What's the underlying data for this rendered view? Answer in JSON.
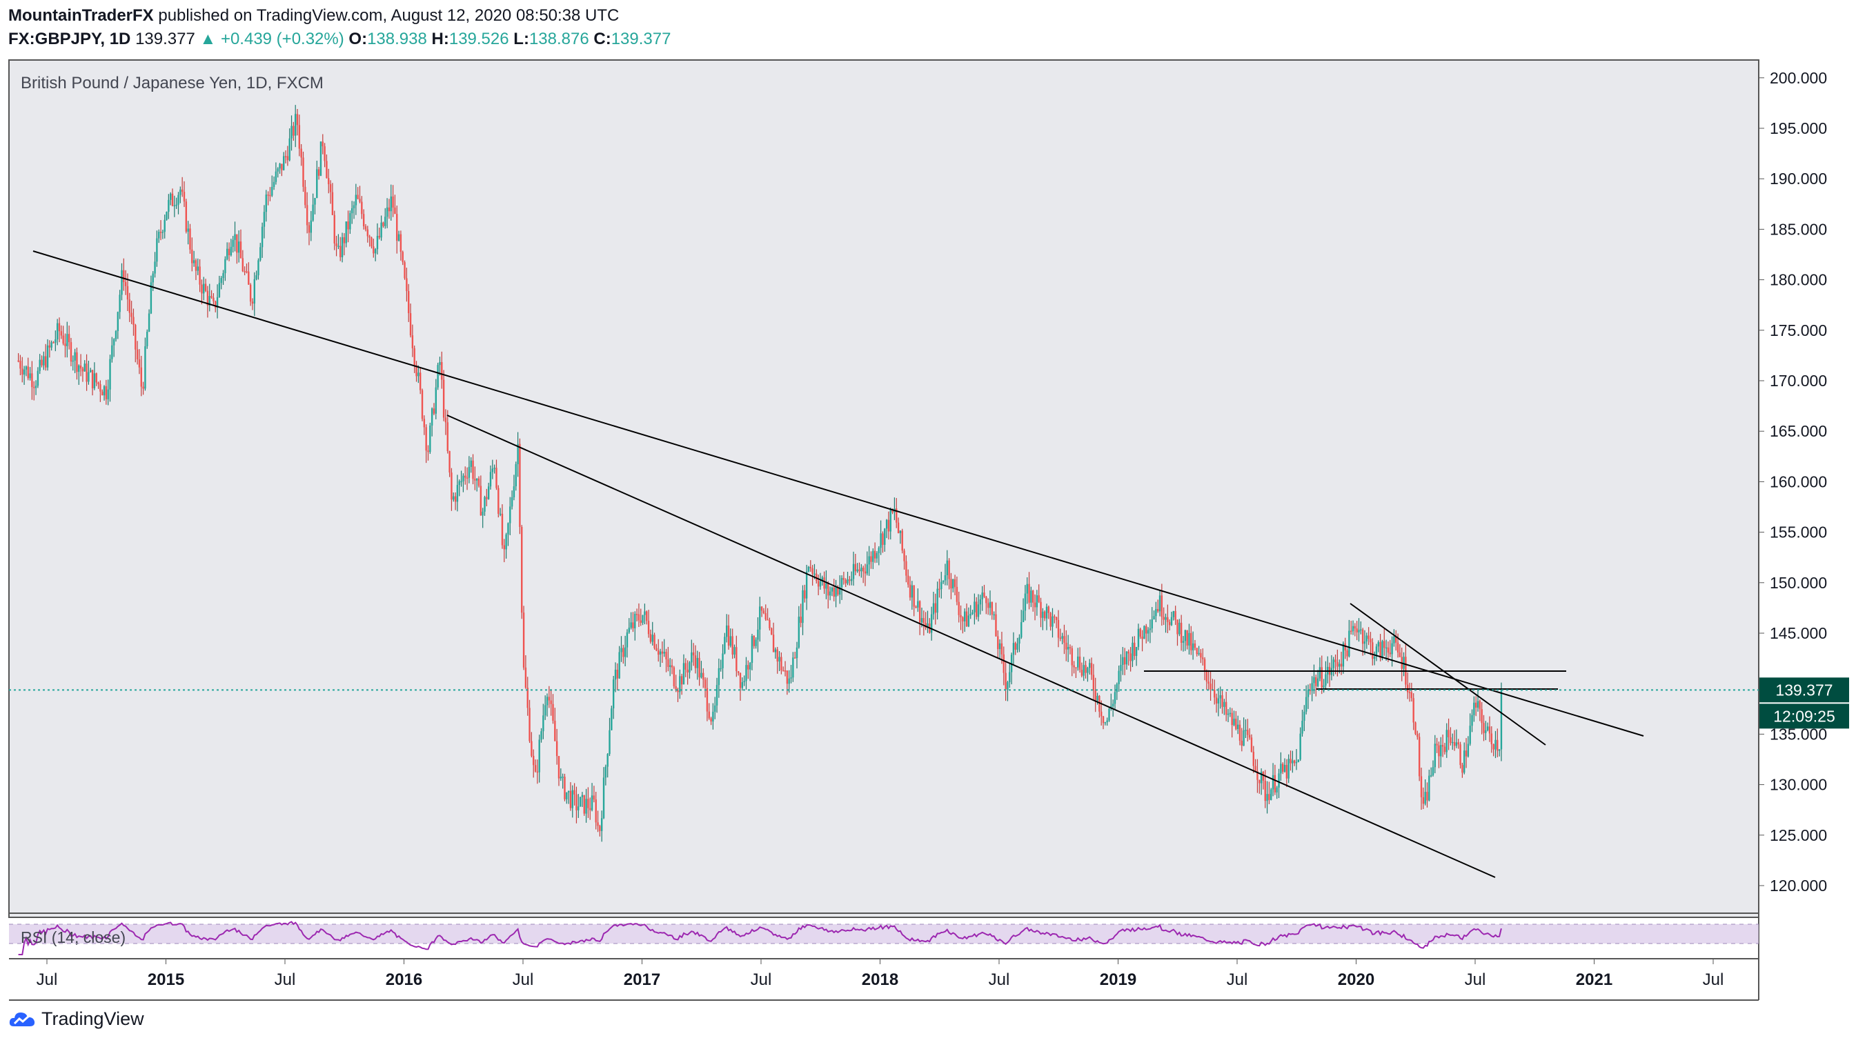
{
  "header": {
    "author": "MountainTraderFX",
    "published": "published on TradingView.com, August 12, 2020 08:50:38 UTC"
  },
  "quote": {
    "symbol": "FX:GBPJPY, 1D",
    "last": "139.377",
    "arrow": "▲",
    "change": "+0.439 (+0.32%)",
    "o_label": "O:",
    "o": "138.938",
    "h_label": "H:",
    "h": "139.526",
    "l_label": "L:",
    "l": "138.876",
    "c_label": "C:",
    "c": "139.377"
  },
  "chart_data": {
    "type": "candlestick",
    "title": "British Pound / Japanese Yen, 1D, FXCM",
    "ylim": [
      115,
      202
    ],
    "y_ticks": [
      "120.000",
      "125.000",
      "130.000",
      "135.000",
      "140.000",
      "145.000",
      "150.000",
      "155.000",
      "160.000",
      "165.000",
      "170.000",
      "175.000",
      "180.000",
      "185.000",
      "190.000",
      "195.000",
      "200.000"
    ],
    "x_range": [
      2014.38,
      2021.78
    ],
    "x_ticks": [
      {
        "label": "Jul",
        "t": 2014.5
      },
      {
        "label": "2015",
        "t": 2015.0
      },
      {
        "label": "Jul",
        "t": 2015.5
      },
      {
        "label": "2016",
        "t": 2016.0
      },
      {
        "label": "Jul",
        "t": 2016.5
      },
      {
        "label": "2017",
        "t": 2017.0
      },
      {
        "label": "Jul",
        "t": 2017.5
      },
      {
        "label": "2018",
        "t": 2018.0
      },
      {
        "label": "Jul",
        "t": 2018.5
      },
      {
        "label": "2019",
        "t": 2019.0
      },
      {
        "label": "Jul",
        "t": 2019.5
      },
      {
        "label": "2020",
        "t": 2020.0
      },
      {
        "label": "Jul",
        "t": 2020.5
      },
      {
        "label": "2021",
        "t": 2021.0
      },
      {
        "label": "Jul",
        "t": 2021.5
      }
    ],
    "path": [
      [
        2014.38,
        172
      ],
      [
        2014.45,
        170
      ],
      [
        2014.55,
        175
      ],
      [
        2014.65,
        171
      ],
      [
        2014.75,
        169
      ],
      [
        2014.82,
        181
      ],
      [
        2014.9,
        169
      ],
      [
        2014.95,
        182
      ],
      [
        2015.0,
        187
      ],
      [
        2015.06,
        189
      ],
      [
        2015.12,
        181
      ],
      [
        2015.2,
        177
      ],
      [
        2015.28,
        185
      ],
      [
        2015.36,
        178
      ],
      [
        2015.42,
        188
      ],
      [
        2015.5,
        192
      ],
      [
        2015.55,
        196
      ],
      [
        2015.6,
        185
      ],
      [
        2015.66,
        194
      ],
      [
        2015.72,
        182
      ],
      [
        2015.8,
        188
      ],
      [
        2015.88,
        183
      ],
      [
        2015.95,
        188
      ],
      [
        2016.0,
        180
      ],
      [
        2016.06,
        170
      ],
      [
        2016.1,
        163
      ],
      [
        2016.15,
        172
      ],
      [
        2016.2,
        158
      ],
      [
        2016.28,
        162
      ],
      [
        2016.33,
        157
      ],
      [
        2016.38,
        162
      ],
      [
        2016.42,
        152
      ],
      [
        2016.48,
        164
      ],
      [
        2016.5,
        142
      ],
      [
        2016.55,
        130
      ],
      [
        2016.6,
        140
      ],
      [
        2016.66,
        130
      ],
      [
        2016.72,
        128
      ],
      [
        2016.8,
        128
      ],
      [
        2016.82,
        125
      ],
      [
        2016.88,
        140
      ],
      [
        2016.94,
        145
      ],
      [
        2017.0,
        147
      ],
      [
        2017.08,
        143
      ],
      [
        2017.15,
        140
      ],
      [
        2017.22,
        143
      ],
      [
        2017.3,
        136
      ],
      [
        2017.35,
        146
      ],
      [
        2017.42,
        140
      ],
      [
        2017.5,
        147
      ],
      [
        2017.58,
        142
      ],
      [
        2017.62,
        140
      ],
      [
        2017.7,
        152
      ],
      [
        2017.78,
        149
      ],
      [
        2017.85,
        150
      ],
      [
        2017.95,
        152
      ],
      [
        2018.06,
        157
      ],
      [
        2018.12,
        150
      ],
      [
        2018.2,
        145
      ],
      [
        2018.28,
        152
      ],
      [
        2018.35,
        146
      ],
      [
        2018.45,
        149
      ],
      [
        2018.53,
        140
      ],
      [
        2018.62,
        149
      ],
      [
        2018.7,
        147
      ],
      [
        2018.8,
        143
      ],
      [
        2018.88,
        141
      ],
      [
        2018.95,
        136
      ],
      [
        2019.02,
        142
      ],
      [
        2019.1,
        145
      ],
      [
        2019.17,
        148
      ],
      [
        2019.27,
        145
      ],
      [
        2019.35,
        142
      ],
      [
        2019.45,
        137
      ],
      [
        2019.55,
        134
      ],
      [
        2019.62,
        129
      ],
      [
        2019.68,
        131
      ],
      [
        2019.75,
        132
      ],
      [
        2019.8,
        140
      ],
      [
        2019.88,
        141
      ],
      [
        2019.95,
        143
      ],
      [
        2020.0,
        146
      ],
      [
        2020.08,
        143
      ],
      [
        2020.15,
        144
      ],
      [
        2020.2,
        142
      ],
      [
        2020.25,
        136
      ],
      [
        2020.28,
        127
      ],
      [
        2020.33,
        133
      ],
      [
        2020.4,
        135
      ],
      [
        2020.45,
        132
      ],
      [
        2020.5,
        138
      ],
      [
        2020.55,
        135
      ],
      [
        2020.6,
        134
      ],
      [
        2020.66,
        137
      ],
      [
        2020.61,
        139.377
      ]
    ],
    "indicator": {
      "label": "RSI (14, close)",
      "upper": 70,
      "lower": 30
    },
    "last_price": "139.377",
    "countdown": "12:09:25"
  },
  "footer": {
    "brand": "TradingView"
  }
}
